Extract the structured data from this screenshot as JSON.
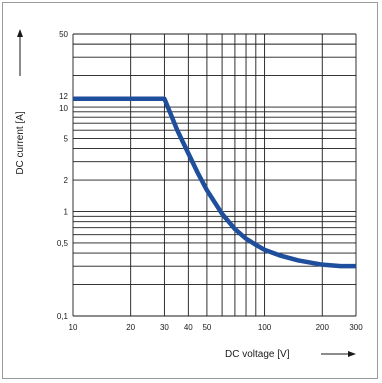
{
  "chart_data": {
    "type": "line",
    "xlabel": "DC voltage [V]",
    "ylabel": "DC current [A]",
    "x_scale": "log",
    "y_scale": "log",
    "xlim": [
      10,
      300
    ],
    "ylim": [
      0.1,
      50
    ],
    "x_ticks": [
      10,
      20,
      30,
      40,
      50,
      100,
      200,
      300
    ],
    "x_tick_labels": [
      "10",
      "20",
      "30",
      "40",
      "50",
      "100",
      "200",
      "300"
    ],
    "y_ticks": [
      0.1,
      0.5,
      1,
      2,
      5,
      10,
      12,
      50
    ],
    "y_tick_labels": [
      "0,1",
      "0,5",
      "1",
      "2",
      "5",
      "10",
      "12",
      "50"
    ],
    "grid": true,
    "x_grid": [
      10,
      20,
      30,
      40,
      50,
      60,
      70,
      80,
      90,
      100,
      200,
      300
    ],
    "y_grid": [
      0.1,
      0.2,
      0.3,
      0.4,
      0.5,
      0.6,
      0.7,
      0.8,
      0.9,
      1,
      2,
      3,
      4,
      5,
      6,
      7,
      8,
      9,
      10,
      20,
      30,
      40,
      50
    ],
    "series": [
      {
        "color": "#1f4e9c",
        "points": [
          [
            10,
            12
          ],
          [
            30,
            12
          ],
          [
            32,
            9.0
          ],
          [
            35,
            6.0
          ],
          [
            40,
            3.6
          ],
          [
            45,
            2.3
          ],
          [
            50,
            1.6
          ],
          [
            60,
            0.95
          ],
          [
            70,
            0.68
          ],
          [
            80,
            0.55
          ],
          [
            90,
            0.48
          ],
          [
            100,
            0.43
          ],
          [
            120,
            0.38
          ],
          [
            150,
            0.34
          ],
          [
            200,
            0.31
          ],
          [
            250,
            0.3
          ],
          [
            300,
            0.3
          ]
        ]
      }
    ]
  }
}
